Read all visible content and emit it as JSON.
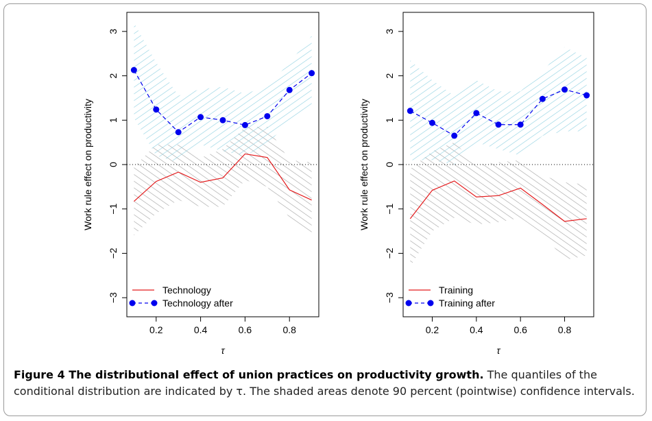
{
  "chart_data": [
    {
      "type": "line",
      "x": [
        0.1,
        0.2,
        0.3,
        0.4,
        0.5,
        0.6,
        0.7,
        0.8,
        0.9
      ],
      "x_label": "τ",
      "y_label": "Work rule effect on productivity",
      "xlim": [
        0.068,
        0.932
      ],
      "ylim": [
        -3.43,
        3.43
      ],
      "xticks": [
        0.2,
        0.4,
        0.6,
        0.8
      ],
      "yticks": [
        {
          "value": -3,
          "label": "−3"
        },
        {
          "value": -2,
          "label": "−2"
        },
        {
          "value": -1,
          "label": "−1"
        },
        0,
        1,
        2,
        3
      ],
      "reference_line": 0,
      "legend": "bottom-left",
      "series": [
        {
          "name": "Technology",
          "color": "#e41a1c",
          "line_style": "solid",
          "marker": "none",
          "band_color": "#a0a0a0",
          "values": [
            -0.83,
            -0.38,
            -0.17,
            -0.4,
            -0.3,
            0.24,
            0.16,
            -0.57,
            -0.8
          ],
          "upper": [
            -0.05,
            0.45,
            0.45,
            0.15,
            0.35,
            0.85,
            0.85,
            0.1,
            0.05
          ],
          "lower": [
            -1.6,
            -1.1,
            -0.8,
            -0.95,
            -0.95,
            -0.35,
            -0.5,
            -1.2,
            -1.6
          ]
        },
        {
          "name": "Technology after",
          "color": "#0000ee",
          "line_style": "dashed",
          "marker": "circle",
          "band_color": "#8ccfe0",
          "values": [
            2.13,
            1.24,
            0.73,
            1.07,
            1.0,
            0.89,
            1.09,
            1.68,
            2.06
          ],
          "upper": [
            3.2,
            2.3,
            1.55,
            1.7,
            1.75,
            1.6,
            1.75,
            2.3,
            2.9
          ],
          "lower": [
            1.05,
            0.2,
            0.05,
            0.45,
            0.3,
            0.2,
            0.45,
            1.0,
            1.25
          ]
        }
      ]
    },
    {
      "type": "line",
      "x": [
        0.1,
        0.2,
        0.3,
        0.4,
        0.5,
        0.6,
        0.7,
        0.8,
        0.9
      ],
      "x_label": "τ",
      "y_label": "Work rule effect on productivity",
      "xlim": [
        0.068,
        0.932
      ],
      "ylim": [
        -3.43,
        3.43
      ],
      "xticks": [
        0.2,
        0.4,
        0.6,
        0.8
      ],
      "yticks": [
        {
          "value": -3,
          "label": "−3"
        },
        {
          "value": -2,
          "label": "−2"
        },
        {
          "value": -1,
          "label": "−1"
        },
        0,
        1,
        2,
        3
      ],
      "reference_line": 0,
      "legend": "bottom-left",
      "series": [
        {
          "name": "Training",
          "color": "#e41a1c",
          "line_style": "solid",
          "marker": "none",
          "band_color": "#a0a0a0",
          "values": [
            -1.22,
            -0.58,
            -0.37,
            -0.73,
            -0.7,
            -0.53,
            -0.9,
            -1.28,
            -1.22
          ],
          "upper": [
            -0.1,
            0.3,
            0.5,
            0.0,
            0.05,
            0.1,
            -0.25,
            -0.4,
            -0.45
          ],
          "lower": [
            -2.3,
            -1.5,
            -1.2,
            -1.35,
            -1.3,
            -1.2,
            -1.55,
            -2.15,
            -2.05
          ]
        },
        {
          "name": "Training after",
          "color": "#0000ee",
          "line_style": "dashed",
          "marker": "circle",
          "band_color": "#8ccfe0",
          "values": [
            1.21,
            0.94,
            0.65,
            1.16,
            0.9,
            0.9,
            1.48,
            1.69,
            1.56
          ],
          "upper": [
            2.35,
            1.9,
            1.55,
            1.9,
            1.65,
            1.65,
            2.1,
            2.65,
            2.4
          ],
          "lower": [
            0.1,
            0.1,
            0.0,
            0.5,
            0.35,
            0.2,
            0.65,
            0.75,
            0.75
          ]
        }
      ]
    }
  ],
  "caption": {
    "title": "Figure 4 The distributional effect of union practices on productivity growth.",
    "text": "The quantiles of the conditional distribution are indicated by τ. The shaded areas denote 90 percent (pointwise) confidence intervals."
  }
}
